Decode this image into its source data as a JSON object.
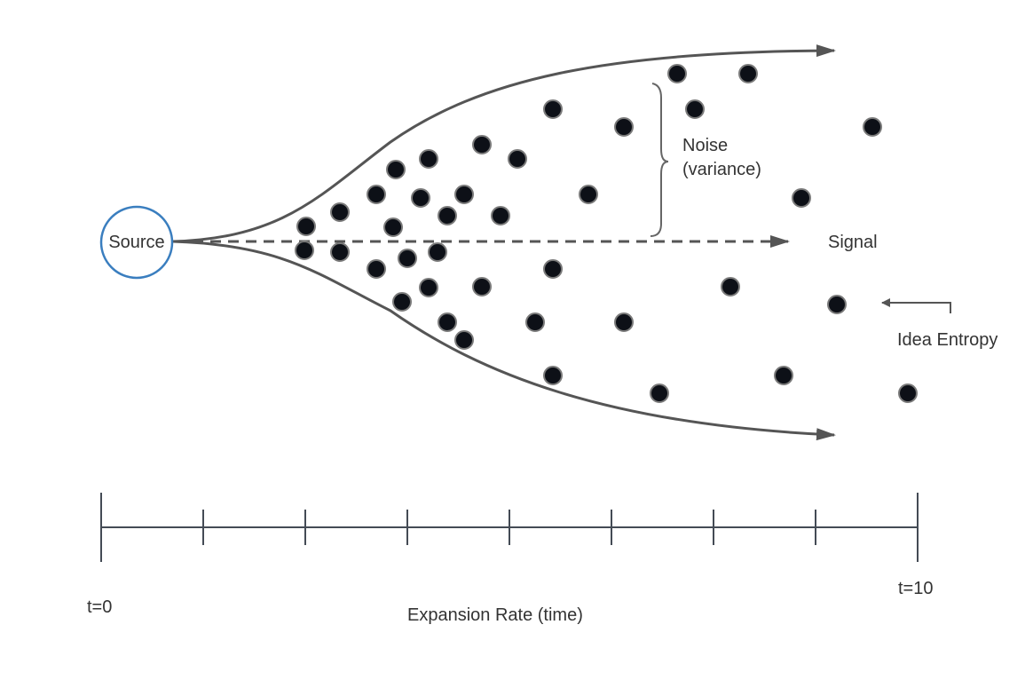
{
  "labels": {
    "source": "Source",
    "noise_line1": "Noise",
    "noise_line2": "(variance)",
    "signal": "Signal",
    "idea_entropy": "Idea Entropy",
    "axis_start": "t=0",
    "axis_end": "t=10",
    "axis_title": "Expansion Rate (time)"
  },
  "colors": {
    "stroke": "#555555",
    "source_circle": "#3a7ebf",
    "dot_fill": "#0d1017",
    "dot_stroke": "#7a7a7a",
    "text": "#333333"
  },
  "axis": {
    "min": 0,
    "max": 10,
    "tick_count": 8
  },
  "icons": [
    "arrow-right-icon",
    "arrow-left-icon",
    "curly-brace-icon"
  ]
}
